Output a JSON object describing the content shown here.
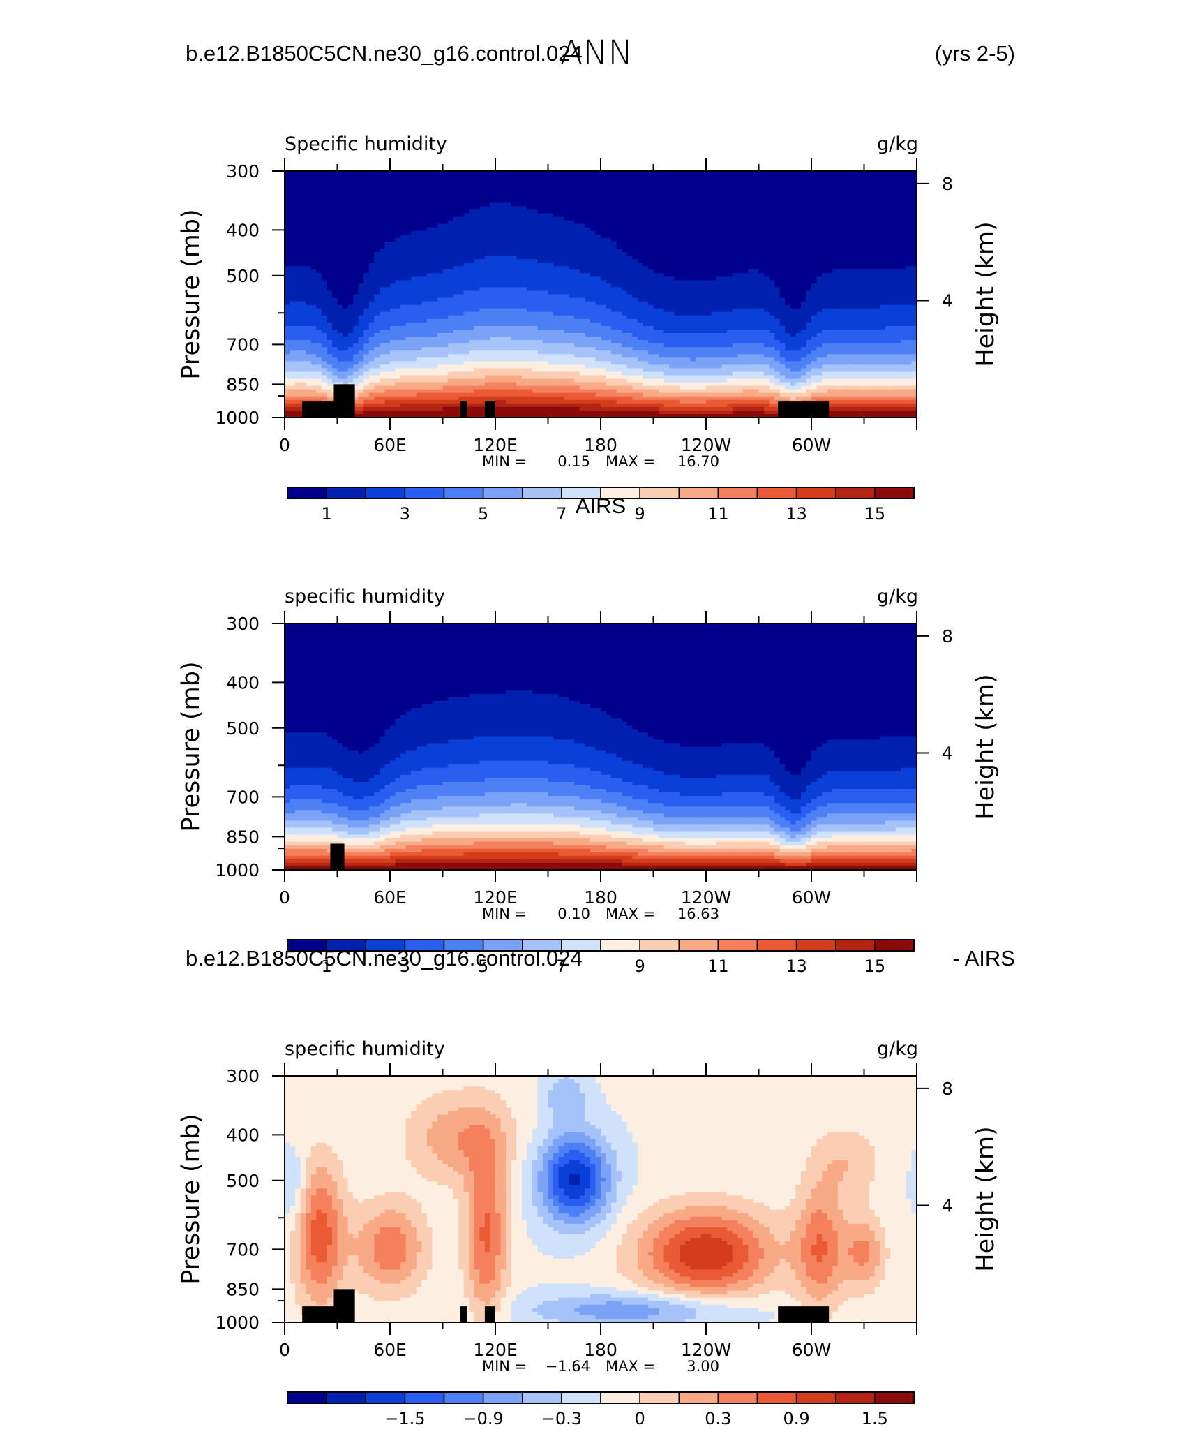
{
  "page_title": "ANN",
  "chart_data": [
    {
      "type": "heatmap",
      "header_left": "b.e12.B1850C5CN.ne30_g16.control.024",
      "header_right": "(yrs 2-5)",
      "title": "Specific humidity",
      "units": "g/kg",
      "ylabel": "Pressure (mb)",
      "ylabel_right": "Height (km)",
      "x_ticks": [
        "0",
        "60E",
        "120E",
        "180",
        "120W",
        "60W"
      ],
      "y_ticks": [
        "300",
        "400",
        "500",
        "700",
        "850",
        "1000"
      ],
      "y_ticks_right": [
        "8",
        "4"
      ],
      "min_label": "MIN =",
      "min_value": "0.15",
      "max_label": "MAX =",
      "max_value": "16.70",
      "levels": [
        "1",
        "3",
        "5",
        "7",
        "9",
        "11",
        "13",
        "15"
      ],
      "kind": "model"
    },
    {
      "type": "heatmap",
      "header_center": "AIRS",
      "title": "specific humidity",
      "units": "g/kg",
      "ylabel": "Pressure (mb)",
      "ylabel_right": "Height (km)",
      "x_ticks": [
        "0",
        "60E",
        "120E",
        "180",
        "120W",
        "60W"
      ],
      "y_ticks": [
        "300",
        "400",
        "500",
        "700",
        "850",
        "1000"
      ],
      "y_ticks_right": [
        "8",
        "4"
      ],
      "min_label": "MIN =",
      "min_value": "0.10",
      "max_label": "MAX =",
      "max_value": "16.63",
      "levels": [
        "1",
        "3",
        "5",
        "7",
        "9",
        "11",
        "13",
        "15"
      ],
      "kind": "obs"
    },
    {
      "type": "heatmap",
      "header_left": "b.e12.B1850C5CN.ne30_g16.control.024",
      "header_right": "- AIRS",
      "title": "specific humidity",
      "units": "g/kg",
      "ylabel": "Pressure (mb)",
      "ylabel_right": "Height (km)",
      "x_ticks": [
        "0",
        "60E",
        "120E",
        "180",
        "120W",
        "60W"
      ],
      "y_ticks": [
        "300",
        "400",
        "500",
        "700",
        "850",
        "1000"
      ],
      "y_ticks_right": [
        "8",
        "4"
      ],
      "min_label": "MIN =",
      "min_value": "−1.64",
      "max_label": "MAX =",
      "max_value": "3.00",
      "levels": [
        "−1.5",
        "−0.9",
        "−0.3",
        "0",
        "0.3",
        "0.9",
        "1.5"
      ],
      "kind": "diff"
    }
  ],
  "colors": {
    "blue_red_16": [
      "#00008c",
      "#0020b0",
      "#0a3fd8",
      "#2a5ef0",
      "#4d80f5",
      "#7aa2f7",
      "#a5c3f9",
      "#cfe1fb",
      "#fdeee2",
      "#fbcdb2",
      "#f8a985",
      "#f4805d",
      "#ea5a35",
      "#d43d1c",
      "#b32412",
      "#8b0a0a"
    ],
    "diff_16": [
      "#00008c",
      "#0020b0",
      "#0a3fd8",
      "#2a5ef0",
      "#4d80f5",
      "#7aa2f7",
      "#a5c3f9",
      "#cfe1fb",
      "#fdeee2",
      "#fbcdb2",
      "#f8a985",
      "#f4805d",
      "#ea5a35",
      "#d43d1c",
      "#b32412",
      "#8b0a0a"
    ],
    "topography": "#000000"
  }
}
